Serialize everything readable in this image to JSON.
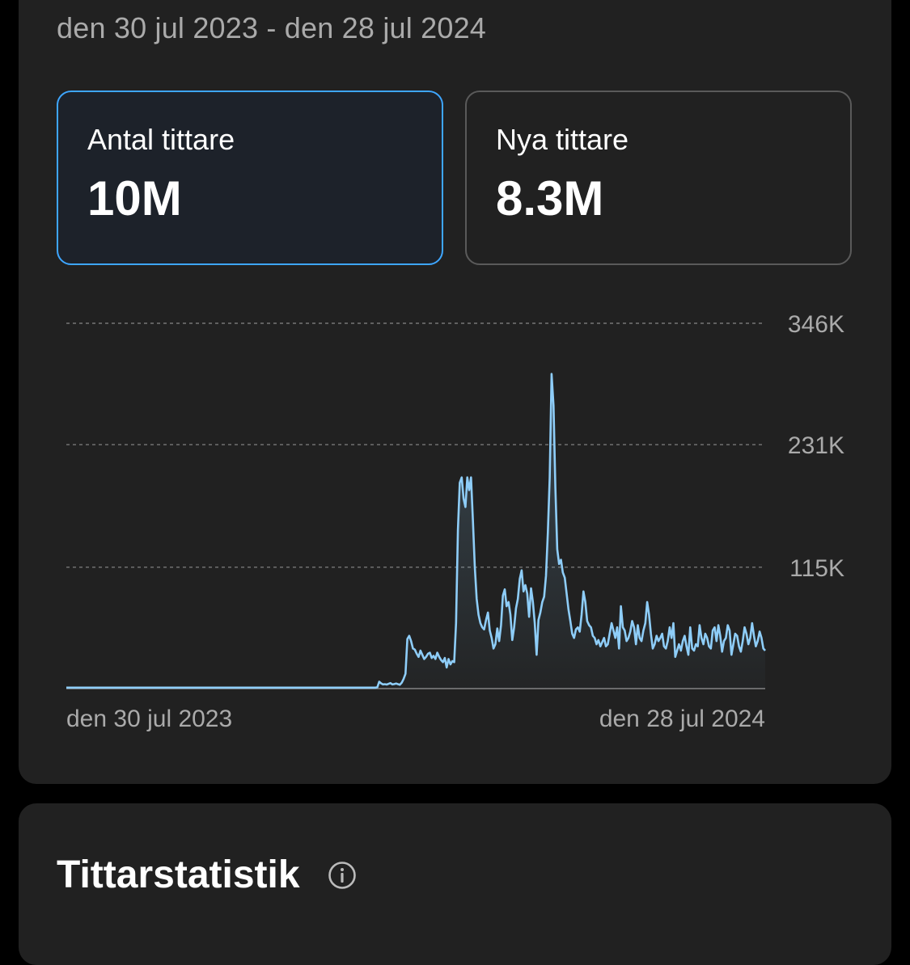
{
  "header": {
    "date_range": "den 30 jul 2023 - den 28 jul 2024"
  },
  "metrics": [
    {
      "label": "Antal tittare",
      "value": "10M",
      "selected": true
    },
    {
      "label": "Nya tittare",
      "value": "8.3M",
      "selected": false
    }
  ],
  "chart_data": {
    "type": "area",
    "y_tick_labels": [
      "346K",
      "231K",
      "115K"
    ],
    "y_ticks": [
      346000,
      231000,
      115000
    ],
    "ylim": [
      0,
      346000
    ],
    "x_tick_labels": [
      "den 30 jul 2023",
      "den 28 jul 2024"
    ],
    "grid": true,
    "series": [
      {
        "values": [
          900,
          900,
          900,
          900,
          900,
          900,
          900,
          900,
          900,
          900,
          900,
          900,
          900,
          900,
          900,
          900,
          900,
          900,
          900,
          900,
          900,
          900,
          900,
          900,
          900,
          900,
          900,
          900,
          900,
          900,
          900,
          900,
          900,
          900,
          900,
          900,
          900,
          900,
          900,
          900,
          900,
          900,
          900,
          900,
          900,
          900,
          900,
          900,
          900,
          900,
          900,
          900,
          900,
          900,
          900,
          900,
          900,
          900,
          900,
          900,
          900,
          900,
          900,
          900,
          900,
          900,
          900,
          900,
          900,
          900,
          900,
          900,
          900,
          900,
          900,
          900,
          900,
          900,
          900,
          900,
          900,
          900,
          900,
          900,
          900,
          900,
          900,
          900,
          900,
          900,
          900,
          900,
          900,
          900,
          900,
          900,
          900,
          900,
          900,
          900,
          900,
          900,
          900,
          900,
          900,
          900,
          900,
          900,
          900,
          900,
          900,
          900,
          900,
          900,
          900,
          900,
          900,
          900,
          900,
          900,
          900,
          900,
          900,
          900,
          900,
          900,
          900,
          900,
          900,
          900,
          900,
          900,
          900,
          900,
          900,
          900,
          900,
          900,
          900,
          900,
          900,
          900,
          900,
          900,
          900,
          900,
          900,
          900,
          900,
          900,
          900,
          900,
          900,
          900,
          900,
          900,
          900,
          900,
          900,
          900,
          900,
          900,
          900,
          900,
          900,
          900,
          1200,
          6500,
          5000,
          4000,
          4200,
          3800,
          4500,
          5200,
          4000,
          4300,
          4800,
          4200,
          3600,
          5500,
          9000,
          14000,
          47000,
          50000,
          45000,
          38000,
          37000,
          33000,
          30000,
          36000,
          32000,
          28000,
          30000,
          33000,
          34000,
          29000,
          31000,
          28000,
          34000,
          30000,
          27000,
          25000,
          29000,
          20000,
          28000,
          23000,
          26000,
          25000,
          62000,
          150000,
          195000,
          200000,
          180000,
          172000,
          200000,
          188000,
          200000,
          160000,
          115000,
          85000,
          70000,
          62000,
          58000,
          56000,
          65000,
          72000,
          55000,
          48000,
          38000,
          42000,
          57000,
          45000,
          60000,
          88000,
          94000,
          78000,
          82000,
          70000,
          46000,
          58000,
          76000,
          85000,
          104000,
          112000,
          92000,
          98000,
          90000,
          68000,
          95000,
          82000,
          62000,
          32000,
          65000,
          72000,
          82000,
          87000,
          107000,
          148000,
          200000,
          298000,
          268000,
          190000,
          132000,
          118000,
          122000,
          110000,
          105000,
          90000,
          75000,
          64000,
          52000,
          48000,
          56000,
          58000,
          54000,
          70000,
          92000,
          82000,
          64000,
          60000,
          58000,
          50000,
          48000,
          42000,
          46000,
          40000,
          44000,
          48000,
          40000,
          42000,
          52000,
          62000,
          55000,
          48000,
          58000,
          38000,
          78000,
          58000,
          55000,
          45000,
          48000,
          54000,
          64000,
          58000,
          42000,
          60000,
          48000,
          45000,
          55000,
          62000,
          82000,
          70000,
          52000,
          38000,
          42000,
          50000,
          45000,
          48000,
          52000,
          40000,
          38000,
          45000,
          58000,
          48000,
          62000,
          30000,
          36000,
          42000,
          36000,
          45000,
          50000,
          40000,
          32000,
          58000,
          38000,
          36000,
          42000,
          40000,
          60000,
          48000,
          42000,
          52000,
          48000,
          40000,
          38000,
          55000,
          58000,
          45000,
          60000,
          50000,
          35000,
          45000,
          48000,
          60000,
          55000,
          32000,
          42000,
          52000,
          50000,
          40000,
          35000,
          45000,
          58000,
          52000,
          42000,
          48000,
          62000,
          50000,
          40000,
          45000,
          54000,
          48000,
          38000,
          36000
        ]
      }
    ]
  },
  "stats_section": {
    "title": "Tittarstatistik",
    "icon": "info-icon"
  },
  "colors": {
    "accent": "#3ea6ff",
    "line": "#8ecdf8",
    "card": "#212121",
    "background": "#000000"
  }
}
